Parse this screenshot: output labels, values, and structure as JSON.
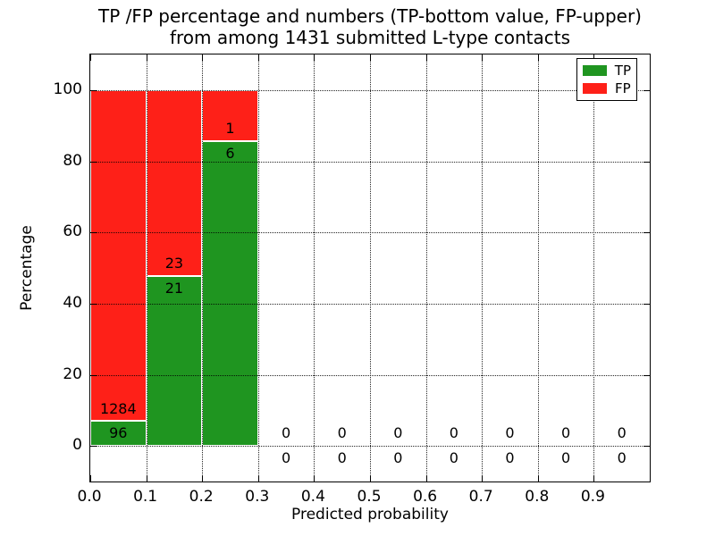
{
  "figure": {
    "title_line1": "TP /FP percentage and numbers (TP-bottom value, FP-upper)",
    "title_line2": "from among 1431 submitted L-type contacts",
    "background": "#ffffff"
  },
  "chart_data": {
    "type": "bar",
    "stacked": true,
    "title": "TP /FP percentage and numbers (TP-bottom value, FP-upper)\nfrom among 1431 submitted L-type contacts",
    "xlabel": "Predicted probability",
    "ylabel": "Percentage",
    "xlim": [
      0.0,
      1.0
    ],
    "ylim": [
      -10,
      110
    ],
    "x_tick_values": [
      0.0,
      0.1,
      0.2,
      0.3,
      0.4,
      0.5,
      0.6,
      0.7,
      0.8,
      0.9
    ],
    "x_tick_labels": [
      "0.0",
      "0.1",
      "0.2",
      "0.3",
      "0.4",
      "0.5",
      "0.6",
      "0.7",
      "0.8",
      "0.9"
    ],
    "y_tick_values": [
      0,
      20,
      40,
      60,
      80,
      100
    ],
    "y_tick_labels": [
      "0",
      "20",
      "40",
      "60",
      "80",
      "100"
    ],
    "grid": {
      "on": true,
      "style": "dotted",
      "color": "#000000"
    },
    "legend": {
      "position": "upper-right",
      "entries": [
        {
          "label": "TP",
          "color": "#1f9520"
        },
        {
          "label": "FP",
          "color": "#fe2018"
        }
      ]
    },
    "total_contacts_in_title": 1431,
    "bins": [
      {
        "range": [
          0.0,
          0.1
        ],
        "tp_count": 96,
        "fp_count": 1284,
        "tp_pct": 6.96,
        "fp_pct": 93.04
      },
      {
        "range": [
          0.1,
          0.2
        ],
        "tp_count": 21,
        "fp_count": 23,
        "tp_pct": 47.73,
        "fp_pct": 52.27
      },
      {
        "range": [
          0.2,
          0.3
        ],
        "tp_count": 6,
        "fp_count": 1,
        "tp_pct": 85.71,
        "fp_pct": 14.29
      },
      {
        "range": [
          0.3,
          0.4
        ],
        "tp_count": 0,
        "fp_count": 0,
        "tp_pct": 0,
        "fp_pct": 0
      },
      {
        "range": [
          0.4,
          0.5
        ],
        "tp_count": 0,
        "fp_count": 0,
        "tp_pct": 0,
        "fp_pct": 0
      },
      {
        "range": [
          0.5,
          0.6
        ],
        "tp_count": 0,
        "fp_count": 0,
        "tp_pct": 0,
        "fp_pct": 0
      },
      {
        "range": [
          0.6,
          0.7
        ],
        "tp_count": 0,
        "fp_count": 0,
        "tp_pct": 0,
        "fp_pct": 0
      },
      {
        "range": [
          0.7,
          0.8
        ],
        "tp_count": 0,
        "fp_count": 0,
        "tp_pct": 0,
        "fp_pct": 0
      },
      {
        "range": [
          0.8,
          0.9
        ],
        "tp_count": 0,
        "fp_count": 0,
        "tp_pct": 0,
        "fp_pct": 0
      },
      {
        "range": [
          0.9,
          1.0
        ],
        "tp_count": 0,
        "fp_count": 0,
        "tp_pct": 0,
        "fp_pct": 0
      }
    ],
    "colors": {
      "tp": "#1f9520",
      "fp": "#fe2018",
      "frame": "#000000",
      "text": "#000000"
    }
  }
}
